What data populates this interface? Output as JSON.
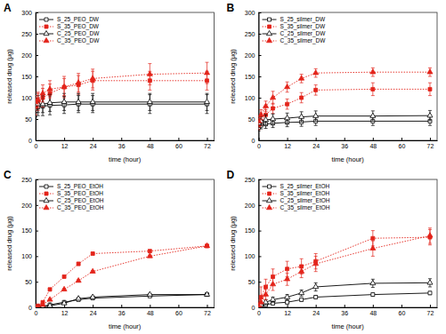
{
  "chart_data": [
    {
      "type": "line",
      "title": "A",
      "x_label": "time (hour)",
      "y_label": "released drug (μg)",
      "x": [
        0,
        1,
        3,
        6,
        12,
        18,
        24,
        48,
        72
      ],
      "xlim": [
        0,
        75
      ],
      "xticks": [
        0,
        12,
        24,
        36,
        48,
        60,
        72
      ],
      "ylim": [
        0,
        300
      ],
      "yticks": [
        0,
        50,
        100,
        150,
        200,
        250,
        300
      ],
      "legend": "top-left",
      "series": [
        {
          "name": "S_25_PEO_DW",
          "color": "#000000",
          "marker": "square-open",
          "line_style": "solid",
          "values": [
            75,
            78,
            80,
            82,
            83,
            85,
            85,
            85,
            85
          ],
          "errors": [
            20,
            20,
            22,
            22,
            20,
            20,
            20,
            22,
            22
          ]
        },
        {
          "name": "S_35_PEO_DW",
          "color": "#e3241b",
          "marker": "square",
          "line_style": "dotted",
          "values": [
            80,
            90,
            100,
            110,
            125,
            130,
            140,
            140,
            140
          ],
          "errors": [
            20,
            20,
            22,
            22,
            25,
            22,
            22,
            22,
            22
          ]
        },
        {
          "name": "C_25_PEO_DW",
          "color": "#000000",
          "marker": "triangle-open",
          "line_style": "solid",
          "values": [
            85,
            85,
            85,
            88,
            90,
            90,
            90,
            90,
            90
          ],
          "errors": [
            20,
            20,
            20,
            20,
            20,
            20,
            20,
            20,
            20
          ]
        },
        {
          "name": "C_35_PEO_DW",
          "color": "#e3241b",
          "marker": "triangle",
          "line_style": "dotted",
          "values": [
            90,
            95,
            110,
            120,
            125,
            135,
            145,
            155,
            158
          ],
          "errors": [
            15,
            18,
            20,
            20,
            20,
            22,
            22,
            25,
            25
          ]
        }
      ]
    },
    {
      "type": "line",
      "title": "B",
      "x_label": "time (hour)",
      "y_label": "released drug (μg)",
      "x": [
        0,
        1,
        3,
        6,
        12,
        18,
        24,
        48,
        72
      ],
      "xlim": [
        0,
        75
      ],
      "xticks": [
        0,
        12,
        24,
        36,
        48,
        60,
        72
      ],
      "ylim": [
        0,
        300
      ],
      "yticks": [
        0,
        50,
        100,
        150,
        200,
        250,
        300
      ],
      "legend": "top-left",
      "series": [
        {
          "name": "S_25_silmer_DW",
          "color": "#000000",
          "marker": "square-open",
          "line_style": "solid",
          "values": [
            30,
            35,
            38,
            40,
            42,
            43,
            45,
            45,
            45
          ],
          "errors": [
            8,
            8,
            10,
            10,
            10,
            10,
            10,
            10,
            10
          ]
        },
        {
          "name": "S_35_silmer_DW",
          "color": "#e3241b",
          "marker": "square",
          "line_style": "dotted",
          "values": [
            35,
            45,
            60,
            75,
            85,
            100,
            118,
            120,
            120
          ],
          "errors": [
            10,
            10,
            12,
            12,
            12,
            12,
            12,
            15,
            15
          ]
        },
        {
          "name": "C_25_silmer_DW",
          "color": "#000000",
          "marker": "triangle-open",
          "line_style": "solid",
          "values": [
            40,
            45,
            48,
            50,
            52,
            55,
            57,
            57,
            58
          ],
          "errors": [
            10,
            10,
            12,
            12,
            12,
            12,
            12,
            12,
            12
          ]
        },
        {
          "name": "C_35_silmer_DW",
          "color": "#e3241b",
          "marker": "triangle",
          "line_style": "dotted",
          "values": [
            45,
            60,
            80,
            100,
            125,
            145,
            158,
            160,
            160
          ],
          "errors": [
            10,
            12,
            12,
            15,
            12,
            10,
            10,
            10,
            10
          ]
        }
      ]
    },
    {
      "type": "line",
      "title": "C",
      "x_label": "time (hour)",
      "y_label": "released drug (μg)",
      "x": [
        0,
        1,
        3,
        6,
        12,
        18,
        24,
        48,
        72
      ],
      "xlim": [
        0,
        75
      ],
      "xticks": [
        0,
        12,
        24,
        36,
        48,
        60,
        72
      ],
      "ylim": [
        0,
        250
      ],
      "yticks": [
        0,
        50,
        100,
        150,
        200,
        250
      ],
      "legend": "top-left",
      "series": [
        {
          "name": "S_25_PEO_EtOH",
          "color": "#000000",
          "marker": "square-open",
          "line_style": "solid",
          "values": [
            0,
            1,
            2,
            5,
            10,
            15,
            18,
            22,
            25
          ],
          "errors": [
            1,
            1,
            1,
            1,
            2,
            2,
            2,
            2,
            2
          ]
        },
        {
          "name": "S_35_PEO_EtOH",
          "color": "#e3241b",
          "marker": "square",
          "line_style": "dotted",
          "values": [
            0,
            3,
            10,
            35,
            60,
            85,
            105,
            110,
            120
          ],
          "errors": [
            1,
            1,
            2,
            2,
            2,
            3,
            2,
            2,
            3
          ]
        },
        {
          "name": "C_25_PEO_EtOH",
          "color": "#000000",
          "marker": "triangle-open",
          "line_style": "solid",
          "values": [
            0,
            0,
            1,
            3,
            8,
            17,
            20,
            25,
            25
          ],
          "errors": [
            1,
            1,
            1,
            1,
            2,
            2,
            2,
            2,
            2
          ]
        },
        {
          "name": "C_35_PEO_EtOH",
          "color": "#e3241b",
          "marker": "triangle",
          "line_style": "dotted",
          "values": [
            0,
            1,
            5,
            15,
            35,
            52,
            70,
            100,
            120
          ],
          "errors": [
            1,
            1,
            1,
            2,
            2,
            2,
            2,
            2,
            3
          ]
        }
      ]
    },
    {
      "type": "line",
      "title": "D",
      "x_label": "time (hour)",
      "y_label": "released drug (μg)",
      "x": [
        0,
        1,
        3,
        6,
        12,
        18,
        24,
        48,
        72
      ],
      "xlim": [
        0,
        75
      ],
      "xticks": [
        0,
        12,
        24,
        36,
        48,
        60,
        72
      ],
      "ylim": [
        0,
        250
      ],
      "yticks": [
        0,
        50,
        100,
        150,
        200,
        250
      ],
      "legend": "top-left",
      "series": [
        {
          "name": "S_25_silmer_EtOH",
          "color": "#000000",
          "marker": "square-open",
          "line_style": "solid",
          "values": [
            0,
            2,
            5,
            8,
            10,
            15,
            20,
            25,
            28
          ],
          "errors": [
            2,
            2,
            3,
            3,
            3,
            3,
            3,
            3,
            3
          ]
        },
        {
          "name": "S_35_silmer_EtOH",
          "color": "#e3241b",
          "marker": "square",
          "line_style": "dotted",
          "values": [
            5,
            20,
            40,
            60,
            75,
            80,
            90,
            135,
            137
          ],
          "errors": [
            10,
            20,
            15,
            15,
            15,
            15,
            15,
            15,
            15
          ]
        },
        {
          "name": "C_25_silmer_EtOH",
          "color": "#000000",
          "marker": "triangle-open",
          "line_style": "solid",
          "values": [
            0,
            5,
            10,
            15,
            20,
            28,
            40,
            47,
            48
          ],
          "errors": [
            3,
            5,
            5,
            5,
            5,
            6,
            8,
            8,
            8
          ]
        },
        {
          "name": "C_35_silmer_EtOH",
          "color": "#e3241b",
          "marker": "triangle",
          "line_style": "dotted",
          "values": [
            2,
            10,
            25,
            45,
            55,
            70,
            85,
            115,
            140
          ],
          "errors": [
            5,
            10,
            10,
            12,
            12,
            12,
            15,
            15,
            15
          ]
        }
      ]
    }
  ]
}
